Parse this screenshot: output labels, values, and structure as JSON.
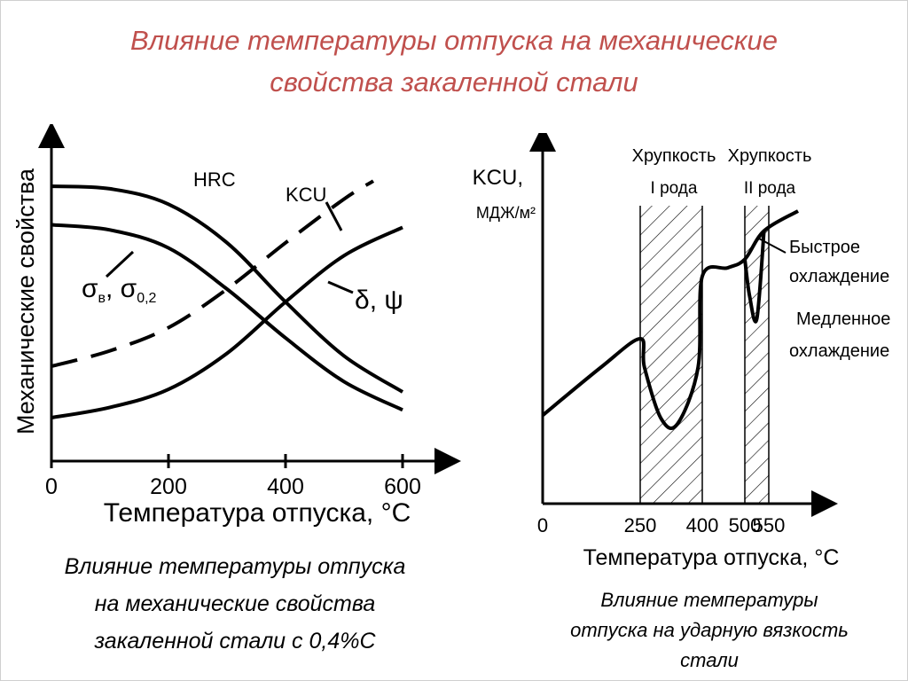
{
  "title_lines": [
    "Влияние температуры отпуска на механические",
    "свойства закаленной стали"
  ],
  "left_caption_lines": [
    "Влияние температуры отпуска",
    "на механические свойства",
    "закаленной стали с 0,4%С"
  ],
  "right_caption_lines": [
    "Влияние температуры",
    "отпуска на ударную вязкость",
    "стали"
  ],
  "colors": {
    "title": "#c0504d",
    "ink": "#000000",
    "background": "#ffffff"
  },
  "chart_data": [
    {
      "type": "line",
      "xlabel": "Температура отпуска, °С",
      "ylabel": "Механические свойства",
      "x_ticks": [
        0,
        200,
        400,
        600
      ],
      "xlim": [
        0,
        620
      ],
      "y_scale": "qualitative (no y values printed)",
      "series": [
        {
          "name": "HRC",
          "style": "solid",
          "trend": "decreasing",
          "x": [
            0,
            100,
            200,
            300,
            400,
            500,
            600
          ],
          "y": [
            1.0,
            0.99,
            0.93,
            0.78,
            0.55,
            0.34,
            0.2
          ]
        },
        {
          "name": "σв, σ0,2",
          "style": "solid",
          "trend": "decreasing",
          "x": [
            0,
            100,
            200,
            300,
            400,
            500,
            600
          ],
          "y": [
            0.85,
            0.83,
            0.76,
            0.6,
            0.41,
            0.24,
            0.13
          ]
        },
        {
          "name": "KCU",
          "style": "dashed",
          "trend": "increasing",
          "x": [
            0,
            100,
            200,
            300,
            400,
            500,
            550
          ],
          "y": [
            0.3,
            0.36,
            0.45,
            0.6,
            0.78,
            0.95,
            1.02
          ]
        },
        {
          "name": "δ, ψ",
          "style": "solid",
          "trend": "increasing",
          "x": [
            0,
            100,
            200,
            300,
            400,
            500,
            600
          ],
          "y": [
            0.1,
            0.14,
            0.21,
            0.35,
            0.55,
            0.73,
            0.84
          ]
        }
      ]
    },
    {
      "type": "line",
      "xlabel": "Температура отпуска, °С",
      "ylabel_lines": [
        "KCU,",
        "МДЖ/м²"
      ],
      "x_ticks": [
        0,
        250,
        400,
        500,
        550
      ],
      "y_scale": "qualitative (no y values printed)",
      "shaded_bands": [
        {
          "from": 250,
          "to": 400,
          "label_lines": [
            "Хрупкость",
            "I рода"
          ]
        },
        {
          "from": 500,
          "to": 550,
          "label_lines": [
            "Хрупкость",
            "II рода"
          ]
        }
      ],
      "series": [
        {
          "name": "Быстрое охлаждение",
          "style": "solid",
          "x": [
            0,
            150,
            250,
            260,
            300,
            340,
            390,
            400,
            460,
            500,
            540,
            600
          ],
          "y": [
            0.28,
            0.45,
            0.55,
            0.45,
            0.27,
            0.25,
            0.45,
            0.77,
            0.8,
            0.83,
            0.93,
            1.0
          ]
        },
        {
          "name": "Медленное охлаждение",
          "style": "solid",
          "x": [
            500,
            510,
            525,
            540
          ],
          "y": [
            0.83,
            0.7,
            0.62,
            0.93
          ]
        }
      ]
    }
  ]
}
